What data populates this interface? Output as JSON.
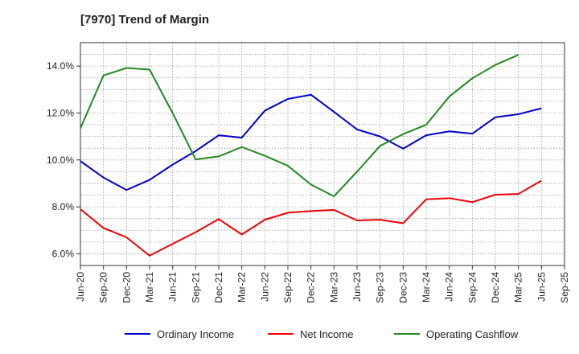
{
  "title": "[7970]  Trend of Margin",
  "chart_data": {
    "type": "line",
    "title": "[7970]  Trend of Margin",
    "xlabel": "",
    "ylabel": "",
    "x": [
      "Jun-20",
      "Sep-20",
      "Dec-20",
      "Mar-21",
      "Jun-21",
      "Sep-21",
      "Dec-21",
      "Mar-22",
      "Jun-22",
      "Sep-22",
      "Dec-22",
      "Mar-23",
      "Jun-23",
      "Sep-23",
      "Dec-23",
      "Mar-24",
      "Jun-24",
      "Sep-24",
      "Dec-24",
      "Mar-25",
      "Jun-25",
      "Sep-25"
    ],
    "ylim": [
      5.5,
      15.0
    ],
    "yticks": [
      6.0,
      8.0,
      10.0,
      12.0,
      14.0
    ],
    "ytick_labels": [
      "6.0%",
      "8.0%",
      "10.0%",
      "12.0%",
      "14.0%"
    ],
    "grid": true,
    "legend_position": "bottom",
    "series": [
      {
        "name": "Ordinary Income",
        "color": "#0000cc",
        "values": [
          9.95,
          9.25,
          8.72,
          9.15,
          9.8,
          10.38,
          11.05,
          10.95,
          12.1,
          12.6,
          12.78,
          12.05,
          11.3,
          11.0,
          10.48,
          11.05,
          11.22,
          11.12,
          11.82,
          11.95,
          12.2,
          null
        ]
      },
      {
        "name": "Net Income",
        "color": "#ee0000",
        "values": [
          7.9,
          7.1,
          6.7,
          5.92,
          6.42,
          6.92,
          7.48,
          6.82,
          7.45,
          7.75,
          7.82,
          7.87,
          7.42,
          7.45,
          7.3,
          8.32,
          8.37,
          8.2,
          8.52,
          8.55,
          9.12,
          null
        ]
      },
      {
        "name": "Operating Cashflow",
        "color": "#228822",
        "values": [
          11.35,
          13.6,
          13.92,
          13.85,
          12.0,
          10.02,
          10.15,
          10.55,
          10.18,
          9.75,
          8.95,
          8.45,
          9.5,
          10.6,
          11.1,
          11.5,
          12.7,
          13.48,
          14.05,
          14.48,
          null,
          null
        ]
      }
    ]
  }
}
